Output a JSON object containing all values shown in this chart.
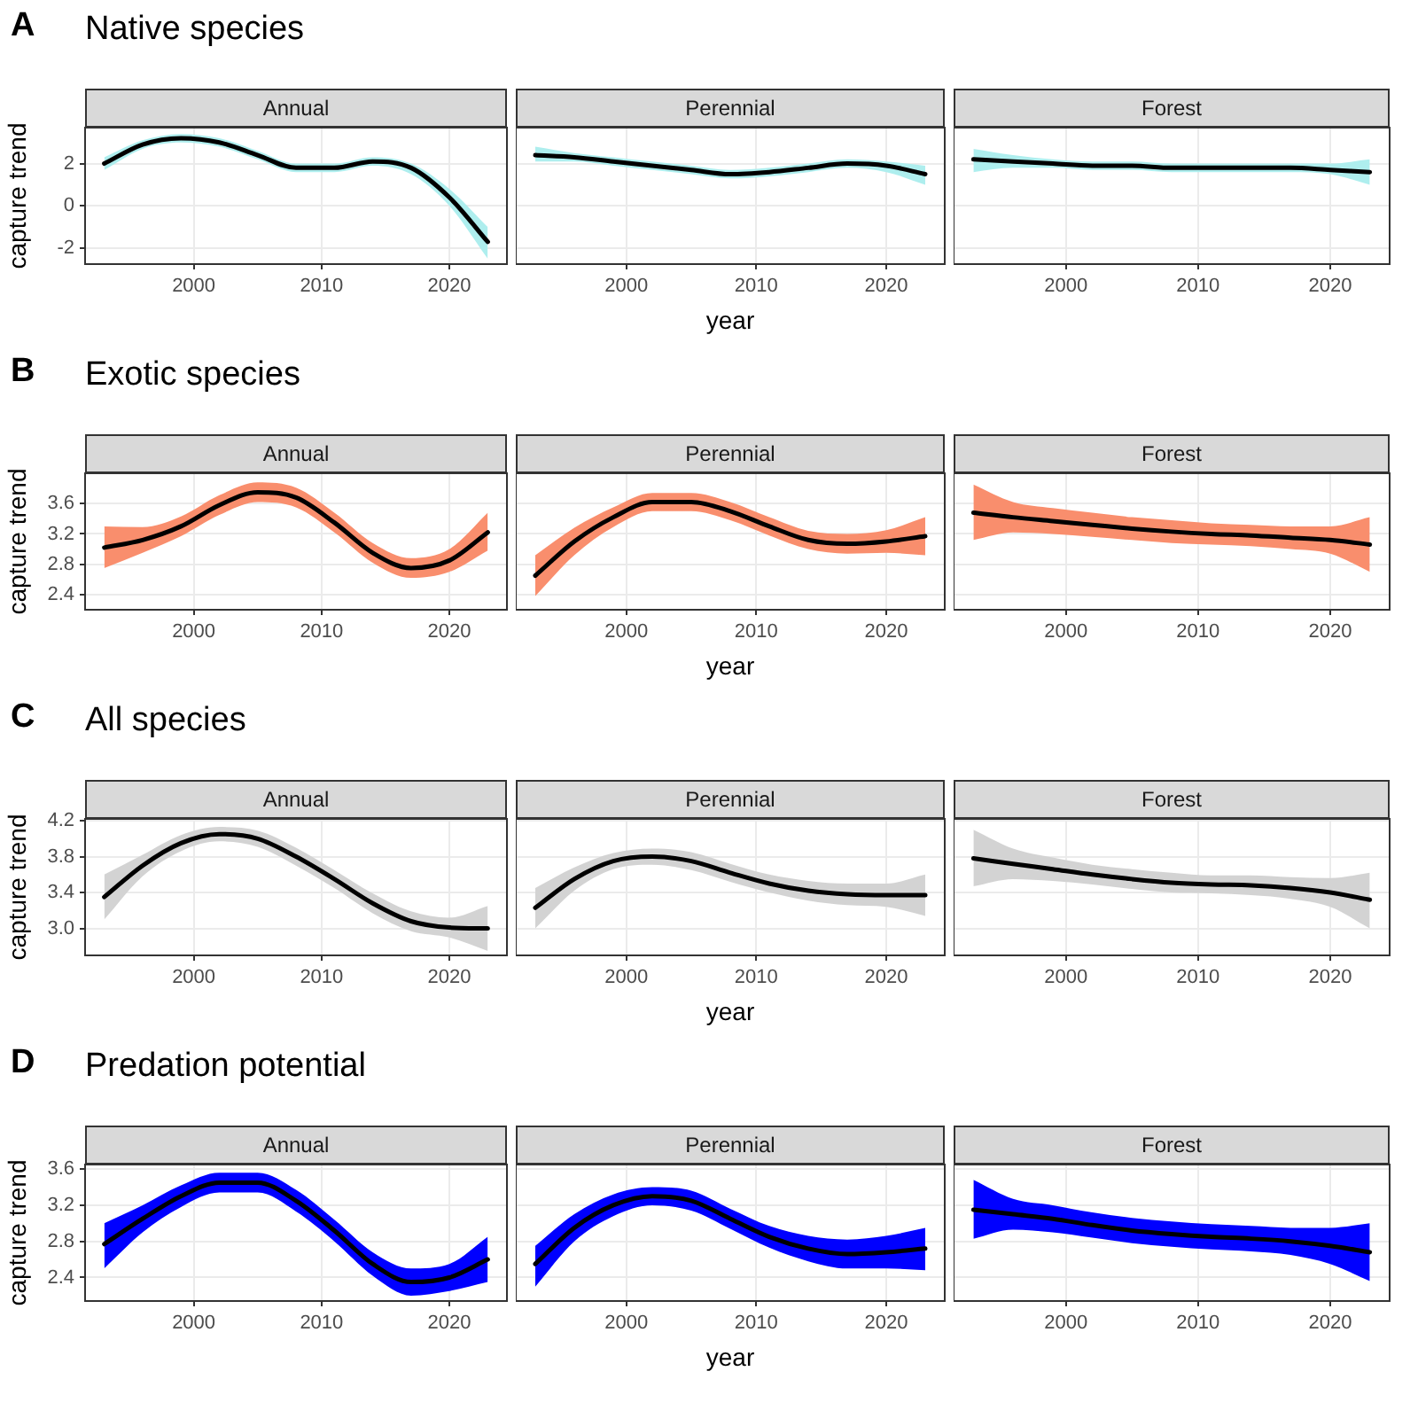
{
  "chart_data": [
    {
      "type": "line",
      "title": "Annual",
      "annotations": [
        "A",
        "Native species"
      ],
      "ylabel": "capture trend",
      "xlim": [
        1991.5,
        2024.5
      ],
      "xticks": [
        2000,
        2010,
        2020
      ],
      "ylim": [
        -2.75,
        3.7
      ],
      "yticks": [
        -2,
        0,
        2
      ],
      "grid": true,
      "legend": false,
      "marker": "none",
      "x": [
        1993,
        1996,
        1999,
        2002,
        2005,
        2008,
        2011,
        2014,
        2017,
        2020,
        2023
      ],
      "series": [
        {
          "color": "#000000",
          "colors": [
            "#aeeeee",
            "#aeeeee",
            "#aeeeee",
            "#aeeeee",
            "#aeeeee",
            "#aeeeee",
            "#aeeeee",
            "#aeeeee",
            "#aeeeee",
            "#aeeeee",
            "#aeeeee"
          ],
          "values": [
            2.0,
            2.9,
            3.2,
            3.0,
            2.4,
            1.8,
            1.8,
            2.1,
            1.8,
            0.4,
            -1.7
          ],
          "lower": [
            1.7,
            2.7,
            3.0,
            2.8,
            2.2,
            1.6,
            1.6,
            1.9,
            1.5,
            0.0,
            -2.5
          ],
          "upper": [
            2.3,
            3.1,
            3.4,
            3.2,
            2.6,
            2.0,
            2.0,
            2.3,
            2.0,
            0.8,
            -1.0
          ]
        }
      ]
    },
    {
      "type": "line",
      "title": "Perennial",
      "xlabel": "year",
      "xlim": [
        1991.5,
        2024.5
      ],
      "xticks": [
        2000,
        2010,
        2020
      ],
      "ylim": [
        -2.75,
        3.7
      ],
      "yticks": [
        -2,
        0,
        2
      ],
      "tick_labels": "x",
      "grid": true,
      "legend": false,
      "marker": "none",
      "x": [
        1993,
        1996,
        1999,
        2002,
        2005,
        2008,
        2011,
        2014,
        2017,
        2020,
        2023
      ],
      "series": [
        {
          "color": "#000000",
          "colors": [
            "#aeeeee",
            "#aeeeee",
            "#aeeeee",
            "#aeeeee",
            "#aeeeee",
            "#aeeeee",
            "#aeeeee",
            "#aeeeee",
            "#aeeeee",
            "#aeeeee",
            "#aeeeee"
          ],
          "values": [
            2.4,
            2.3,
            2.1,
            1.9,
            1.7,
            1.5,
            1.6,
            1.8,
            2.0,
            1.9,
            1.5
          ],
          "lower": [
            2.1,
            2.1,
            1.9,
            1.7,
            1.5,
            1.3,
            1.4,
            1.6,
            1.8,
            1.6,
            1.0
          ],
          "upper": [
            2.8,
            2.5,
            2.3,
            2.1,
            1.9,
            1.7,
            1.8,
            2.0,
            2.2,
            2.1,
            1.9
          ]
        }
      ]
    },
    {
      "type": "line",
      "title": "Forest",
      "xlim": [
        1991.5,
        2024.5
      ],
      "xticks": [
        2000,
        2010,
        2020
      ],
      "ylim": [
        -2.75,
        3.7
      ],
      "yticks": [
        -2,
        0,
        2
      ],
      "tick_labels": "x",
      "grid": true,
      "legend": false,
      "marker": "none",
      "x": [
        1993,
        1996,
        1999,
        2002,
        2005,
        2008,
        2011,
        2014,
        2017,
        2020,
        2023
      ],
      "series": [
        {
          "color": "#000000",
          "colors": [
            "#aeeeee",
            "#aeeeee",
            "#aeeeee",
            "#aeeeee",
            "#aeeeee",
            "#aeeeee",
            "#aeeeee",
            "#aeeeee",
            "#aeeeee",
            "#aeeeee",
            "#aeeeee"
          ],
          "values": [
            2.2,
            2.1,
            2.0,
            1.9,
            1.9,
            1.8,
            1.8,
            1.8,
            1.8,
            1.7,
            1.6
          ],
          "lower": [
            1.6,
            1.8,
            1.8,
            1.7,
            1.7,
            1.6,
            1.6,
            1.6,
            1.6,
            1.5,
            1.0
          ],
          "upper": [
            2.7,
            2.4,
            2.2,
            2.1,
            2.1,
            2.0,
            2.0,
            2.0,
            2.0,
            2.0,
            2.2
          ]
        }
      ]
    },
    {
      "type": "line",
      "title": "Annual",
      "annotations": [
        "B",
        "Exotic species"
      ],
      "ylabel": "capture trend",
      "xlim": [
        1991.5,
        2024.5
      ],
      "xticks": [
        2000,
        2010,
        2020
      ],
      "ylim": [
        2.2,
        4.0
      ],
      "yticks": [
        2.4,
        2.8,
        3.2,
        3.6
      ],
      "grid": true,
      "legend": false,
      "marker": "none",
      "x": [
        1993,
        1996,
        1999,
        2002,
        2005,
        2008,
        2011,
        2014,
        2017,
        2020,
        2023
      ],
      "series": [
        {
          "color": "#000000",
          "colors": [
            "#f98e6d",
            "#f98e6d",
            "#f98e6d",
            "#f98e6d",
            "#f98e6d",
            "#f98e6d",
            "#f98e6d",
            "#f98e6d",
            "#f98e6d",
            "#f98e6d",
            "#f98e6d"
          ],
          "values": [
            3.02,
            3.12,
            3.3,
            3.58,
            3.75,
            3.68,
            3.35,
            2.95,
            2.75,
            2.85,
            3.22
          ],
          "lower": [
            2.75,
            2.95,
            3.17,
            3.45,
            3.62,
            3.55,
            3.22,
            2.82,
            2.62,
            2.7,
            2.98
          ],
          "upper": [
            3.3,
            3.29,
            3.43,
            3.71,
            3.88,
            3.81,
            3.48,
            3.08,
            2.88,
            3.0,
            3.48
          ]
        }
      ]
    },
    {
      "type": "line",
      "title": "Perennial",
      "xlabel": "year",
      "xlim": [
        1991.5,
        2024.5
      ],
      "xticks": [
        2000,
        2010,
        2020
      ],
      "ylim": [
        2.2,
        4.0
      ],
      "yticks": [
        2.4,
        2.8,
        3.2,
        3.6
      ],
      "tick_labels": "x",
      "grid": true,
      "legend": false,
      "marker": "none",
      "x": [
        1993,
        1996,
        1999,
        2002,
        2005,
        2008,
        2011,
        2014,
        2017,
        2020,
        2023
      ],
      "series": [
        {
          "color": "#000000",
          "colors": [
            "#f98e6d",
            "#f98e6d",
            "#f98e6d",
            "#f98e6d",
            "#f98e6d",
            "#f98e6d",
            "#f98e6d",
            "#f98e6d",
            "#f98e6d",
            "#f98e6d",
            "#f98e6d"
          ],
          "values": [
            2.65,
            3.1,
            3.42,
            3.62,
            3.62,
            3.5,
            3.3,
            3.12,
            3.07,
            3.1,
            3.17
          ],
          "lower": [
            2.38,
            2.92,
            3.29,
            3.5,
            3.5,
            3.38,
            3.18,
            3.0,
            2.94,
            2.95,
            2.92
          ],
          "upper": [
            2.92,
            3.28,
            3.55,
            3.74,
            3.74,
            3.62,
            3.42,
            3.24,
            3.2,
            3.25,
            3.42
          ]
        }
      ]
    },
    {
      "type": "line",
      "title": "Forest",
      "xlim": [
        1991.5,
        2024.5
      ],
      "xticks": [
        2000,
        2010,
        2020
      ],
      "ylim": [
        2.2,
        4.0
      ],
      "yticks": [
        2.4,
        2.8,
        3.2,
        3.6
      ],
      "tick_labels": "x",
      "grid": true,
      "legend": false,
      "marker": "none",
      "x": [
        1993,
        1996,
        1999,
        2002,
        2005,
        2008,
        2011,
        2014,
        2017,
        2020,
        2023
      ],
      "series": [
        {
          "color": "#000000",
          "colors": [
            "#f98e6d",
            "#f98e6d",
            "#f98e6d",
            "#f98e6d",
            "#f98e6d",
            "#f98e6d",
            "#f98e6d",
            "#f98e6d",
            "#f98e6d",
            "#f98e6d",
            "#f98e6d"
          ],
          "values": [
            3.48,
            3.42,
            3.37,
            3.32,
            3.27,
            3.23,
            3.2,
            3.18,
            3.15,
            3.12,
            3.06
          ],
          "lower": [
            3.12,
            3.22,
            3.2,
            3.16,
            3.12,
            3.08,
            3.06,
            3.04,
            3.0,
            2.94,
            2.7
          ],
          "upper": [
            3.85,
            3.62,
            3.54,
            3.48,
            3.42,
            3.38,
            3.34,
            3.32,
            3.3,
            3.3,
            3.42
          ]
        }
      ]
    },
    {
      "type": "line",
      "title": "Annual",
      "annotations": [
        "C",
        "All species"
      ],
      "ylabel": "capture trend",
      "xlim": [
        1991.5,
        2024.5
      ],
      "xticks": [
        2000,
        2010,
        2020
      ],
      "ylim": [
        2.7,
        4.22
      ],
      "yticks": [
        {
          "value": 3,
          "label": "3.0"
        },
        3.4,
        3.8,
        4.2
      ],
      "grid": true,
      "legend": false,
      "marker": "none",
      "x": [
        1993,
        1996,
        1999,
        2002,
        2005,
        2008,
        2011,
        2014,
        2017,
        2020,
        2023
      ],
      "series": [
        {
          "color": "#000000",
          "colors": [
            "#d3d3d3",
            "#d3d3d3",
            "#d3d3d3",
            "#d3d3d3",
            "#d3d3d3",
            "#d3d3d3",
            "#d3d3d3",
            "#d3d3d3",
            "#d3d3d3",
            "#d3d3d3",
            "#d3d3d3"
          ],
          "values": [
            3.35,
            3.7,
            3.95,
            4.05,
            4.0,
            3.8,
            3.55,
            3.28,
            3.08,
            3.01,
            3.0
          ],
          "lower": [
            3.1,
            3.58,
            3.86,
            3.97,
            3.91,
            3.7,
            3.45,
            3.17,
            2.97,
            2.9,
            2.75
          ],
          "upper": [
            3.6,
            3.82,
            4.04,
            4.13,
            4.09,
            3.9,
            3.65,
            3.39,
            3.19,
            3.12,
            3.25
          ]
        }
      ]
    },
    {
      "type": "line",
      "title": "Perennial",
      "xlabel": "year",
      "xlim": [
        1991.5,
        2024.5
      ],
      "xticks": [
        2000,
        2010,
        2020
      ],
      "ylim": [
        2.7,
        4.22
      ],
      "yticks": [
        3,
        3.4,
        3.8,
        4.2
      ],
      "tick_labels": "x",
      "grid": true,
      "legend": false,
      "marker": "none",
      "x": [
        1993,
        1996,
        1999,
        2002,
        2005,
        2008,
        2011,
        2014,
        2017,
        2020,
        2023
      ],
      "series": [
        {
          "color": "#000000",
          "colors": [
            "#d3d3d3",
            "#d3d3d3",
            "#d3d3d3",
            "#d3d3d3",
            "#d3d3d3",
            "#d3d3d3",
            "#d3d3d3",
            "#d3d3d3",
            "#d3d3d3",
            "#d3d3d3",
            "#d3d3d3"
          ],
          "values": [
            3.23,
            3.55,
            3.75,
            3.8,
            3.75,
            3.62,
            3.5,
            3.42,
            3.38,
            3.37,
            3.37
          ],
          "lower": [
            3.0,
            3.42,
            3.66,
            3.71,
            3.65,
            3.52,
            3.4,
            3.31,
            3.26,
            3.24,
            3.14
          ],
          "upper": [
            3.45,
            3.68,
            3.84,
            3.89,
            3.85,
            3.72,
            3.6,
            3.53,
            3.5,
            3.5,
            3.6
          ]
        }
      ]
    },
    {
      "type": "line",
      "title": "Forest",
      "xlim": [
        1991.5,
        2024.5
      ],
      "xticks": [
        2000,
        2010,
        2020
      ],
      "ylim": [
        2.7,
        4.22
      ],
      "yticks": [
        3,
        3.4,
        3.8,
        4.2
      ],
      "tick_labels": "x",
      "grid": true,
      "legend": false,
      "marker": "none",
      "x": [
        1993,
        1996,
        1999,
        2002,
        2005,
        2008,
        2011,
        2014,
        2017,
        2020,
        2023
      ],
      "series": [
        {
          "color": "#000000",
          "colors": [
            "#d3d3d3",
            "#d3d3d3",
            "#d3d3d3",
            "#d3d3d3",
            "#d3d3d3",
            "#d3d3d3",
            "#d3d3d3",
            "#d3d3d3",
            "#d3d3d3",
            "#d3d3d3",
            "#d3d3d3"
          ],
          "values": [
            3.78,
            3.72,
            3.66,
            3.6,
            3.55,
            3.51,
            3.49,
            3.48,
            3.45,
            3.4,
            3.32
          ],
          "lower": [
            3.47,
            3.55,
            3.53,
            3.49,
            3.44,
            3.4,
            3.39,
            3.37,
            3.33,
            3.24,
            3.0
          ],
          "upper": [
            4.1,
            3.89,
            3.79,
            3.71,
            3.66,
            3.62,
            3.59,
            3.59,
            3.57,
            3.56,
            3.62
          ]
        }
      ]
    },
    {
      "type": "line",
      "title": "Annual",
      "annotations": [
        "D",
        "Predation potential"
      ],
      "ylabel": "capture trend",
      "xlim": [
        1991.5,
        2024.5
      ],
      "xticks": [
        2000,
        2010,
        2020
      ],
      "ylim": [
        2.14,
        3.65
      ],
      "yticks": [
        2.4,
        2.8,
        3.2,
        3.6
      ],
      "grid": true,
      "legend": false,
      "marker": "none",
      "x": [
        1993,
        1996,
        1999,
        2002,
        2005,
        2008,
        2011,
        2014,
        2017,
        2020,
        2023
      ],
      "series": [
        {
          "color": "#000000",
          "colors": [
            "#0000ff",
            "#0000ff",
            "#0000ff",
            "#0000ff",
            "#0000ff",
            "#0000ff",
            "#0000ff",
            "#0000ff",
            "#0000ff",
            "#0000ff",
            "#0000ff"
          ],
          "values": [
            2.77,
            3.05,
            3.3,
            3.45,
            3.45,
            3.25,
            2.92,
            2.55,
            2.35,
            2.4,
            2.6
          ],
          "lower": [
            2.5,
            2.9,
            3.18,
            3.34,
            3.34,
            3.13,
            2.8,
            2.42,
            2.2,
            2.25,
            2.35
          ],
          "upper": [
            3.0,
            3.2,
            3.42,
            3.56,
            3.56,
            3.37,
            3.04,
            2.68,
            2.5,
            2.55,
            2.85
          ]
        }
      ]
    },
    {
      "type": "line",
      "title": "Perennial",
      "xlabel": "year",
      "xlim": [
        1991.5,
        2024.5
      ],
      "xticks": [
        2000,
        2010,
        2020
      ],
      "ylim": [
        2.14,
        3.65
      ],
      "yticks": [
        2.4,
        2.8,
        3.2,
        3.6
      ],
      "tick_labels": "x",
      "grid": true,
      "legend": false,
      "marker": "none",
      "x": [
        1993,
        1996,
        1999,
        2002,
        2005,
        2008,
        2011,
        2014,
        2017,
        2020,
        2023
      ],
      "series": [
        {
          "color": "#000000",
          "colors": [
            "#0000ff",
            "#0000ff",
            "#0000ff",
            "#0000ff",
            "#0000ff",
            "#0000ff",
            "#0000ff",
            "#0000ff",
            "#0000ff",
            "#0000ff",
            "#0000ff"
          ],
          "values": [
            2.55,
            2.95,
            3.2,
            3.3,
            3.25,
            3.05,
            2.85,
            2.72,
            2.66,
            2.68,
            2.72
          ],
          "lower": [
            2.3,
            2.8,
            3.08,
            3.2,
            3.14,
            2.94,
            2.73,
            2.58,
            2.5,
            2.5,
            2.48
          ],
          "upper": [
            2.75,
            3.1,
            3.32,
            3.4,
            3.36,
            3.16,
            2.97,
            2.86,
            2.82,
            2.86,
            2.95
          ]
        }
      ]
    },
    {
      "type": "line",
      "title": "Forest",
      "xlim": [
        1991.5,
        2024.5
      ],
      "xticks": [
        2000,
        2010,
        2020
      ],
      "ylim": [
        2.14,
        3.65
      ],
      "yticks": [
        2.4,
        2.8,
        3.2,
        3.6
      ],
      "tick_labels": "x",
      "grid": true,
      "legend": false,
      "marker": "none",
      "x": [
        1993,
        1996,
        1999,
        2002,
        2005,
        2008,
        2011,
        2014,
        2017,
        2020,
        2023
      ],
      "series": [
        {
          "color": "#000000",
          "colors": [
            "#0000ff",
            "#0000ff",
            "#0000ff",
            "#0000ff",
            "#0000ff",
            "#0000ff",
            "#0000ff",
            "#0000ff",
            "#0000ff",
            "#0000ff",
            "#0000ff"
          ],
          "values": [
            3.15,
            3.1,
            3.05,
            2.98,
            2.92,
            2.88,
            2.85,
            2.83,
            2.8,
            2.75,
            2.68
          ],
          "lower": [
            2.83,
            2.93,
            2.9,
            2.84,
            2.78,
            2.74,
            2.71,
            2.69,
            2.65,
            2.55,
            2.36
          ],
          "upper": [
            3.48,
            3.27,
            3.2,
            3.12,
            3.06,
            3.02,
            2.99,
            2.97,
            2.95,
            2.95,
            3.0
          ]
        }
      ]
    }
  ]
}
